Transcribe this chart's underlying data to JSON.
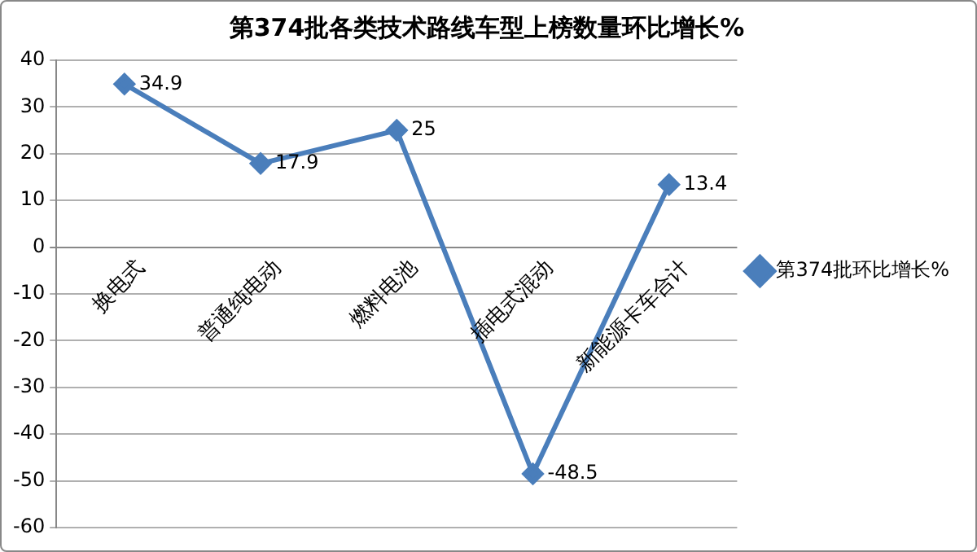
{
  "chart_data": {
    "type": "line",
    "title": "第374批各类技术路线车型上榜数量环比增长%",
    "categories": [
      "换电式",
      "普通纯电动",
      "燃料电池",
      "插电式混动",
      "新能源卡车合计"
    ],
    "series": [
      {
        "name": "第374批环比增长%",
        "color": "#4a7ebb",
        "values": [
          34.9,
          17.9,
          25,
          -48.5,
          13.4
        ]
      }
    ],
    "ylim": [
      -60,
      40
    ],
    "yticks": [
      -60,
      -50,
      -40,
      -30,
      -20,
      -10,
      0,
      10,
      20,
      30,
      40
    ],
    "grid": "y",
    "legend": "right",
    "marker": "diamond",
    "line_style": "solid",
    "data_labels": true
  }
}
